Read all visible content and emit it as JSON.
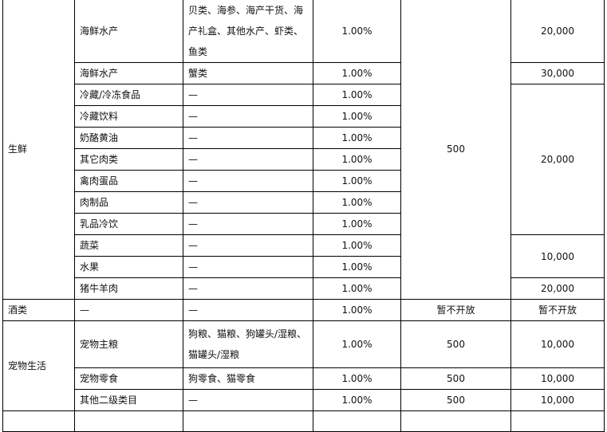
{
  "rows": {
    "fresh": {
      "cat": "生鲜",
      "fee": "500",
      "items": [
        {
          "sub": "海鲜水产",
          "detail": "贝类、海参、海产干货、海产礼盒、其他水产、虾类、鱼类",
          "rate": "1.00%",
          "max": "20,000"
        },
        {
          "sub": "海鲜水产",
          "detail": "蟹类",
          "rate": "1.00%",
          "max": "30,000"
        },
        {
          "sub": "冷藏/冷冻食品",
          "detail": "—",
          "rate": "1.00%",
          "max": "20,000"
        },
        {
          "sub": "冷藏饮料",
          "detail": "—",
          "rate": "1.00%"
        },
        {
          "sub": "奶酪黄油",
          "detail": "—",
          "rate": "1.00%"
        },
        {
          "sub": "其它肉类",
          "detail": "—",
          "rate": "1.00%"
        },
        {
          "sub": "禽肉蛋品",
          "detail": "—",
          "rate": "1.00%"
        },
        {
          "sub": "肉制品",
          "detail": "—",
          "rate": "1.00%"
        },
        {
          "sub": "乳品冷饮",
          "detail": "—",
          "rate": "1.00%"
        },
        {
          "sub": "蔬菜",
          "detail": "—",
          "rate": "1.00%",
          "max": "10,000"
        },
        {
          "sub": "水果",
          "detail": "—",
          "rate": "1.00%"
        },
        {
          "sub": "猪牛羊肉",
          "detail": "—",
          "rate": "1.00%",
          "max": "20,000"
        }
      ]
    },
    "liquor": {
      "cat": "酒类",
      "sub": "—",
      "detail": "—",
      "rate": "1.00%",
      "fee": "暂不开放",
      "max": "暂不开放"
    },
    "pet": {
      "cat": "宠物生活",
      "items": [
        {
          "sub": "宠物主粮",
          "detail": "狗粮、猫粮、狗罐头/湿粮、猫罐头/湿粮",
          "rate": "1.00%",
          "fee": "500",
          "max": "10,000"
        },
        {
          "sub": "宠物零食",
          "detail": "狗零食、猫零食",
          "rate": "1.00%",
          "fee": "500",
          "max": "10,000"
        },
        {
          "sub": "其他二级类目",
          "detail": "—",
          "rate": "1.00%",
          "fee": "500",
          "max": "10,000"
        }
      ]
    }
  }
}
